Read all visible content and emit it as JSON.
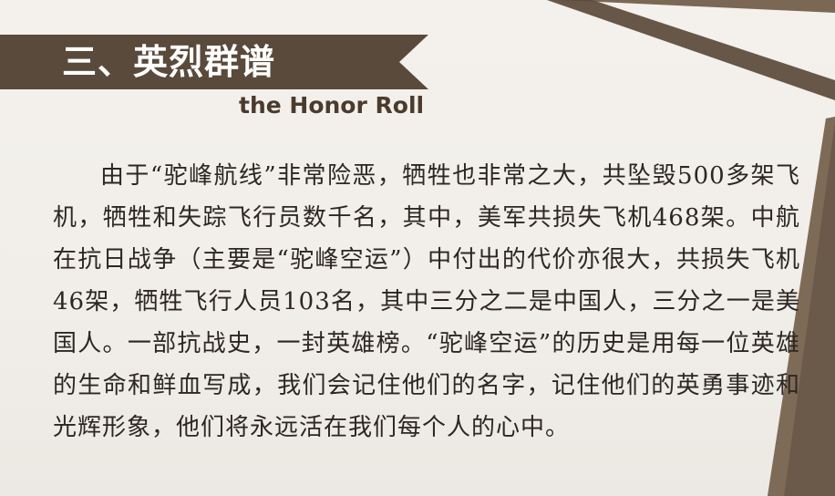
{
  "section": {
    "title": "三、英烈群谱",
    "subtitle": "the Honor Roll"
  },
  "body": {
    "paragraph": "由于“驼峰航线”非常险恶，牺牲也非常之大，共坠毁500多架飞机，牺牲和失踪飞行员数千名，其中，美军共损失飞机468架。中航在抗日战争（主要是“驼峰空运”）中付出的代价亦很大，共损失飞机46架，牺牲飞行人员103名，其中三分之二是中国人，三分之一是美国人。一部抗战史，一封英雄榜。“驼峰空运”的历史是用每一位英雄的生命和鲜血写成，我们会记住他们的名字，记住他们的英勇事迹和光辉形象，他们将永远活在我们每个人的心中。"
  },
  "colors": {
    "banner": "#5a4a3b",
    "frame": "#6b5a49",
    "text": "#2c2722",
    "background": "#f1eee9"
  }
}
